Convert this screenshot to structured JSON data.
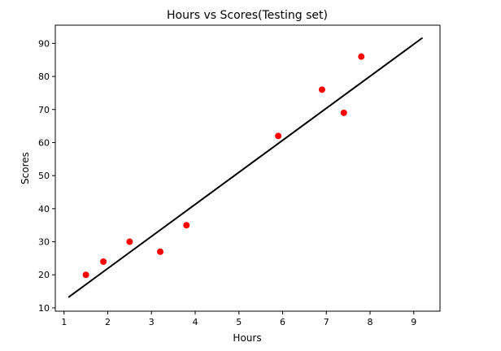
{
  "chart_data": {
    "type": "scatter",
    "title": "Hours vs Scores(Testing set)",
    "xlabel": "Hours",
    "ylabel": "Scores",
    "xlim": [
      0.8,
      9.6
    ],
    "ylim": [
      9,
      95.5
    ],
    "xticks": [
      1,
      2,
      3,
      4,
      5,
      6,
      7,
      8,
      9
    ],
    "yticks": [
      10,
      20,
      30,
      40,
      50,
      60,
      70,
      80,
      90
    ],
    "grid": false,
    "series": [
      {
        "kind": "scatter",
        "color": "#ff0000",
        "points": [
          {
            "x": 1.5,
            "y": 20
          },
          {
            "x": 1.9,
            "y": 24
          },
          {
            "x": 2.5,
            "y": 30
          },
          {
            "x": 3.2,
            "y": 27
          },
          {
            "x": 3.8,
            "y": 35
          },
          {
            "x": 5.9,
            "y": 62
          },
          {
            "x": 6.9,
            "y": 76
          },
          {
            "x": 7.4,
            "y": 69
          },
          {
            "x": 7.8,
            "y": 86
          }
        ]
      },
      {
        "kind": "line",
        "color": "#000000",
        "points": [
          {
            "x": 1.1,
            "y": 13.2
          },
          {
            "x": 9.2,
            "y": 91.7
          }
        ]
      }
    ]
  }
}
